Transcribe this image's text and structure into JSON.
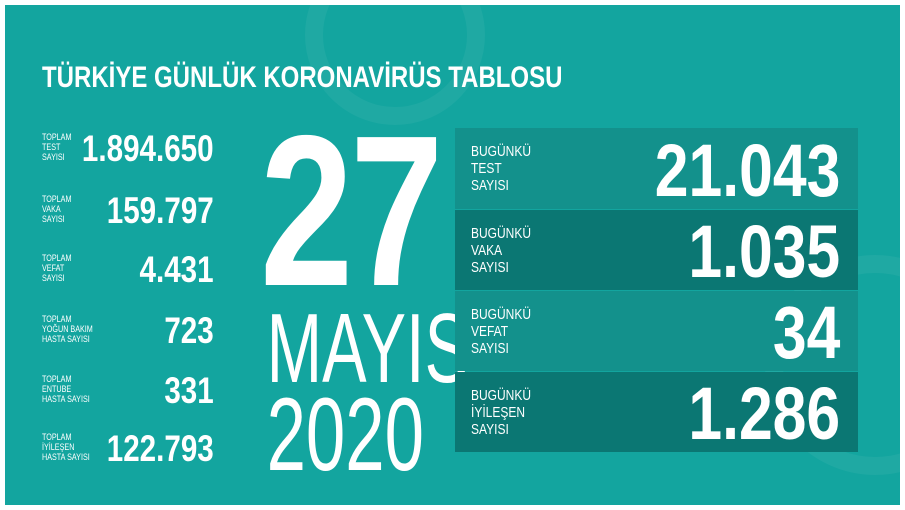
{
  "title": "TÜRKİYE GÜNLÜK KORONAVİRÜS TABLOSU",
  "date": {
    "day": "27",
    "month": "MAYIS",
    "year": "2020"
  },
  "totals": [
    {
      "label": "TOPLAM\nTEST\nSAYISI",
      "value": "1.894.650"
    },
    {
      "label": "TOPLAM\nVAKA\nSAYISI",
      "value": "159.797"
    },
    {
      "label": "TOPLAM\nVEFAT\nSAYISI",
      "value": "4.431"
    },
    {
      "label": "TOPLAM\nYOĞUN BAKIM\nHASTA SAYISI",
      "value": "723"
    },
    {
      "label": "TOPLAM\nENTUBE\nHASTA SAYISI",
      "value": "331"
    },
    {
      "label": "TOPLAM\nİYİLEŞEN\nHASTA SAYISI",
      "value": "122.793"
    }
  ],
  "today": [
    {
      "label": "BUGÜNKÜ\nTEST\nSAYISI",
      "value": "21.043"
    },
    {
      "label": "BUGÜNKÜ\nVAKA\nSAYISI",
      "value": "1.035"
    },
    {
      "label": "BUGÜNKÜ\nVEFAT\nSAYISI",
      "value": "34"
    },
    {
      "label": "BUGÜNKÜ\nİYİLEŞEN\nSAYISI",
      "value": "1.286"
    }
  ],
  "colors": {
    "background": "#13a59f",
    "card_light": "#13918c",
    "card_dark": "#0b7773"
  }
}
